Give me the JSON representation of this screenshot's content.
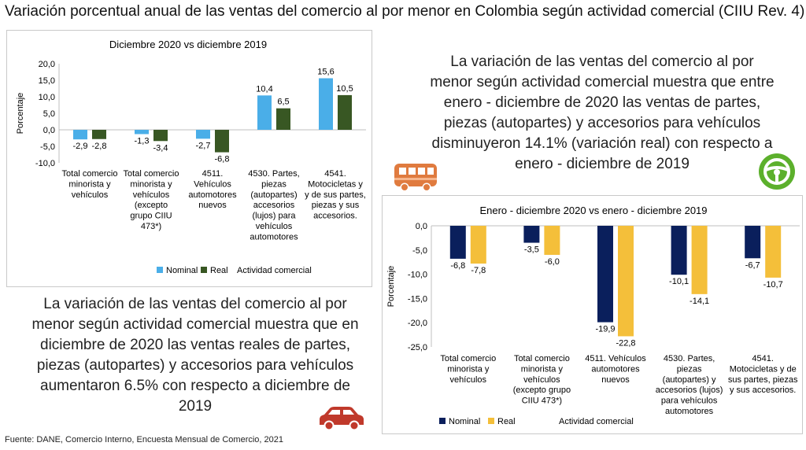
{
  "title": "Variación porcentual anual de las ventas del comercio al por menor en Colombia según actividad comercial (CIIU Rev. 4)",
  "source": "Fuente: DANE, Comercio Interno, Encuesta Mensual de Comercio, 2021",
  "text_top_right": "La variación de las ventas del comercio al por menor según actividad comercial muestra que entre enero - diciembre de 2020 las ventas de partes, piezas (autopartes) y accesorios para vehículos disminuyeron 14.1% (variación real) con respecto a enero - diciembre de 2019",
  "text_bottom_left": "La variación de las ventas del comercio al por menor según actividad comercial muestra que en diciembre de 2020 las ventas reales de partes, piezas (autopartes) y accesorios para vehículos aumentaron 6.5% con respecto a diciembre de 2019",
  "icons": [
    "bus-icon",
    "steering-wheel-icon",
    "car-icon"
  ],
  "colors": {
    "chart1_nominal": "#4aaee8",
    "chart1_real": "#385723",
    "chart2_nominal": "#0a1f5c",
    "chart2_real": "#f4bf3a",
    "icon_orange": "#e07b3f",
    "icon_green": "#5cb02c",
    "icon_red": "#c0392b"
  },
  "chart_data": [
    {
      "type": "bar",
      "title": "Diciembre 2020 vs diciembre 2019",
      "xlabel": "Actividad comercial",
      "ylabel": "Porcentaje",
      "ylim": [
        -10,
        20
      ],
      "yticks": [
        "-10,0",
        "-5,0",
        "0,0",
        "5,0",
        "10,0",
        "15,0",
        "20,0"
      ],
      "grid": false,
      "legend": "bottom",
      "categories": [
        [
          "Total comercio",
          "minorista y",
          "vehículos"
        ],
        [
          "Total comercio",
          "minorista y",
          "vehículos",
          "(excepto",
          "grupo CIIU",
          "473*)"
        ],
        [
          "4511.",
          "Vehículos",
          "automotores",
          "nuevos"
        ],
        [
          "4530. Partes,",
          "piezas",
          "(autopartes)",
          "accesorios",
          "(lujos) para",
          "vehículos",
          "automotores"
        ],
        [
          "4541.",
          "Motocicletas y",
          "y de sus partes,",
          "piezas y sus",
          "accesorios."
        ]
      ],
      "series": [
        {
          "name": "Nominal",
          "values": [
            -2.9,
            -1.3,
            -2.7,
            10.4,
            15.6
          ],
          "labels": [
            "-2,9",
            "-1,3",
            "-2,7",
            "10,4",
            "15,6"
          ]
        },
        {
          "name": "Real",
          "values": [
            -2.8,
            -3.4,
            -6.8,
            6.5,
            10.5
          ],
          "labels": [
            "-2,8",
            "-3,4",
            "-6,8",
            "6,5",
            "10,5"
          ]
        }
      ]
    },
    {
      "type": "bar",
      "title": "Enero - diciembre 2020 vs enero - diciembre 2019",
      "xlabel": "Actividad comercial",
      "ylabel": "Porcentaje",
      "ylim": [
        -25,
        0
      ],
      "yticks": [
        "-25,0",
        "-20,0",
        "-15,0",
        "-10,0",
        "-5,0",
        "0,0"
      ],
      "grid": false,
      "legend": "bottom",
      "categories": [
        [
          "Total comercio",
          "minorista y",
          "vehículos"
        ],
        [
          "Total comercio",
          "minorista y",
          "vehículos",
          "(excepto grupo",
          "CIIU 473*)"
        ],
        [
          "4511. Vehículos",
          "automotores",
          "nuevos"
        ],
        [
          "4530. Partes,",
          "piezas",
          "(autopartes) y",
          "accesorios (lujos)",
          "para vehículos",
          "automotores"
        ],
        [
          "4541.",
          "Motocicletas y de",
          "sus partes, piezas",
          "y sus accesorios."
        ]
      ],
      "series": [
        {
          "name": "Nominal",
          "values": [
            -6.8,
            -3.5,
            -19.9,
            -10.1,
            -6.7
          ],
          "labels": [
            "-6,8",
            "-3,5",
            "-19,9",
            "-10,1",
            "-6,7"
          ]
        },
        {
          "name": "Real",
          "values": [
            -7.8,
            -6.0,
            -22.8,
            -14.1,
            -10.7
          ],
          "labels": [
            "-7,8",
            "-6,0",
            "-22,8",
            "-14,1",
            "-10,7"
          ]
        }
      ]
    }
  ]
}
